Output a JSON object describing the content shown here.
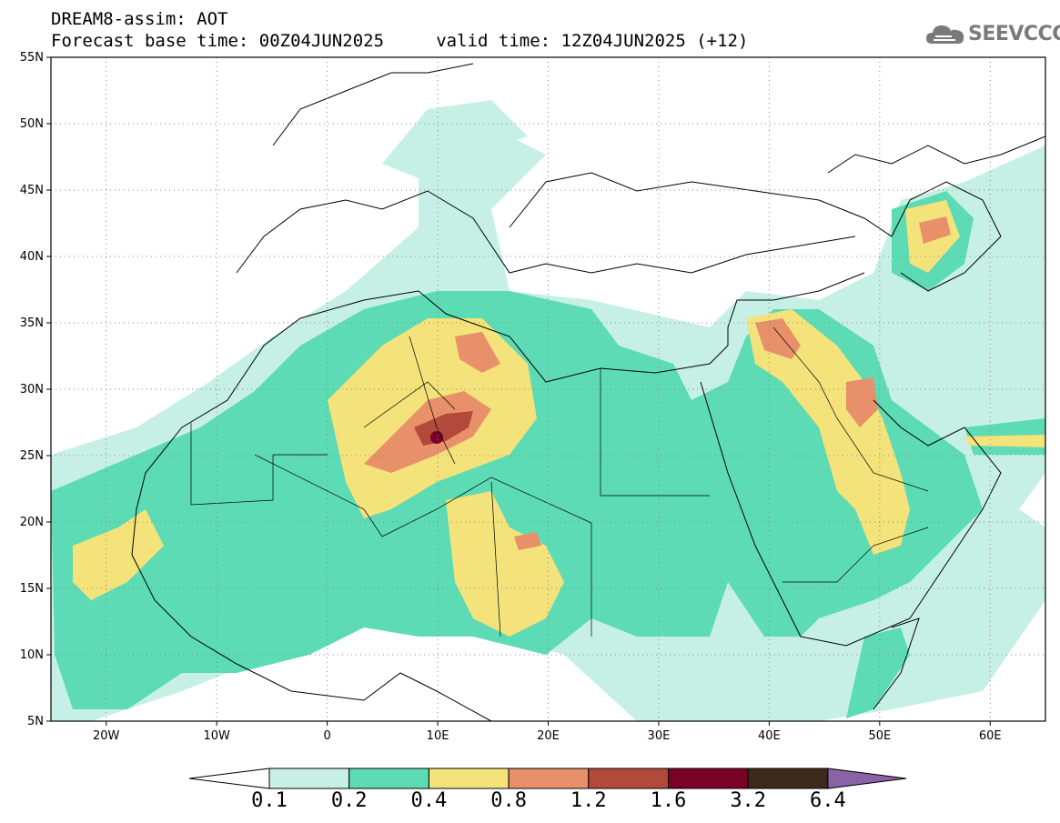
{
  "title": {
    "line1": "DREAM8-assim: AOT",
    "line2": "Forecast base time: 00Z04JUN2025     valid time: 12Z04JUN2025 (+12)"
  },
  "logo": {
    "text": "SEEVCCC",
    "icon": "cloud-icon"
  },
  "map": {
    "lon_range": [
      -25,
      65
    ],
    "lat_range": [
      5,
      55
    ],
    "lat_ticks": [
      "5N",
      "10N",
      "15N",
      "20N",
      "25N",
      "30N",
      "35N",
      "40N",
      "45N",
      "50N",
      "55N"
    ],
    "lon_ticks": [
      "20W",
      "10W",
      "0",
      "10E",
      "20E",
      "30E",
      "40E",
      "50E",
      "60E"
    ],
    "grid": "dotted"
  },
  "colorbar": {
    "labels": [
      "0.1",
      "0.2",
      "0.4",
      "0.8",
      "1.2",
      "1.6",
      "3.2",
      "6.4"
    ],
    "colors": [
      "#ffffff",
      "#c6f0e6",
      "#5ddbb4",
      "#f4e27b",
      "#e8906a",
      "#b24a3c",
      "#7a0026",
      "#3b2a1a",
      "#8a62a6"
    ]
  }
}
